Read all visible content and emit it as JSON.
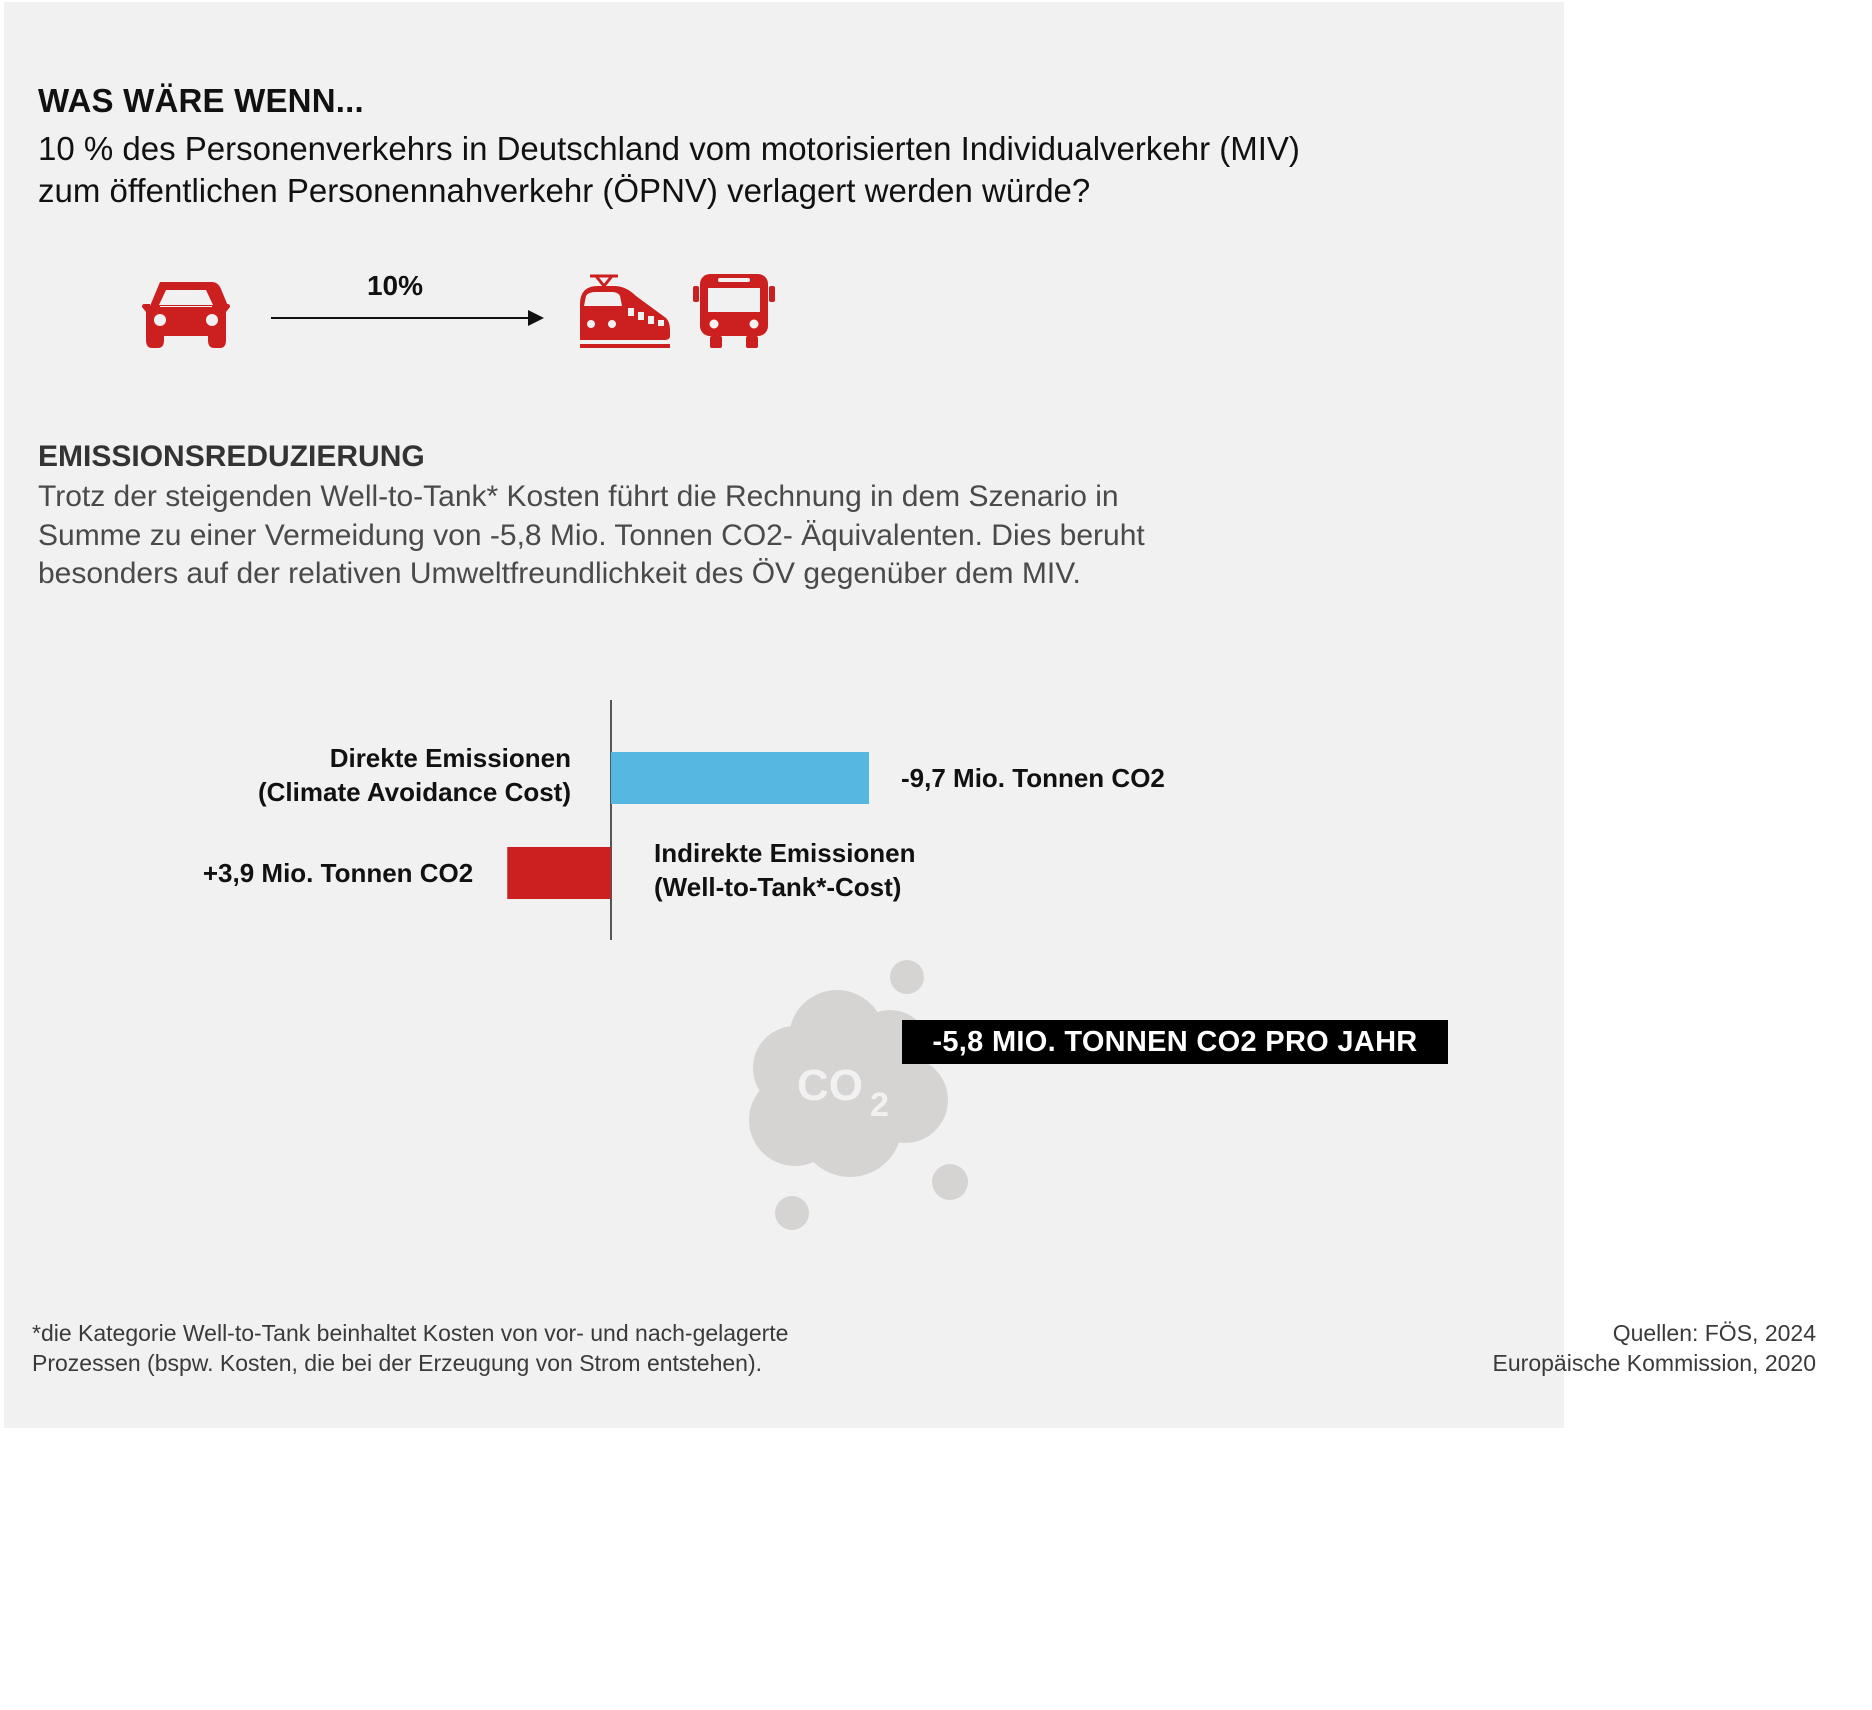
{
  "header": {
    "kicker": "WAS WÄRE WENN...",
    "question_lines": [
      "10 % des Personenverkehrs in Deutschland vom motorisierten Individualverkehr (MIV)",
      "zum öffentlichen Personennahverkehr (ÖPNV) verlagert werden würde?"
    ]
  },
  "shift_graphic": {
    "percent_label": "10%",
    "from_icon": "car-icon",
    "to_icons": [
      "train-icon",
      "bus-icon"
    ],
    "icon_color": "#cc1f1f"
  },
  "section": {
    "title": "EMISSIONSREDUZIERUNG",
    "text_lines": [
      "Trotz der steigenden Well-to-Tank* Kosten führt die Rechnung in dem Szenario in",
      "Summe zu einer Vermeidung von -5,8 Mio. Tonnen CO2- Äquivalenten. Dies beruht",
      "besonders auf der relativen Umweltfreundlichkeit des ÖV gegenüber dem MIV."
    ]
  },
  "chart_data": {
    "type": "bar",
    "orientation": "horizontal",
    "unit": "Mio. Tonnen CO2",
    "categories": [
      [
        "Direkte Emissionen",
        "(Climate Avoidance Cost)"
      ],
      [
        "Indirekte Emissionen",
        "(Well-to-Tank*-Cost)"
      ]
    ],
    "values": [
      -9.7,
      3.9
    ],
    "value_labels": [
      "-9,7 Mio. Tonnen CO2",
      "+3,9 Mio. Tonnen CO2"
    ],
    "colors": [
      "#56b7e0",
      "#cc1f1f"
    ],
    "note": "reductions drawn to the right of the zero line, increases to the left",
    "total_label": "-5,8 MIO. TONNEN CO2 PRO JAHR"
  },
  "cloud": {
    "icon": "co2-cloud-icon",
    "text": "CO",
    "subscript": "2",
    "color": "#d6d3d3"
  },
  "footer": {
    "footnote_lines": [
      "*die Kategorie Well-to-Tank beinhaltet Kosten von vor- und nach-gelagerte",
      "Prozessen (bspw. Kosten, die bei der Erzeugung von Strom entstehen)."
    ],
    "source_lines": [
      "Quellen: FÖS, 2024",
      "Europäische Kommission, 2020"
    ]
  }
}
